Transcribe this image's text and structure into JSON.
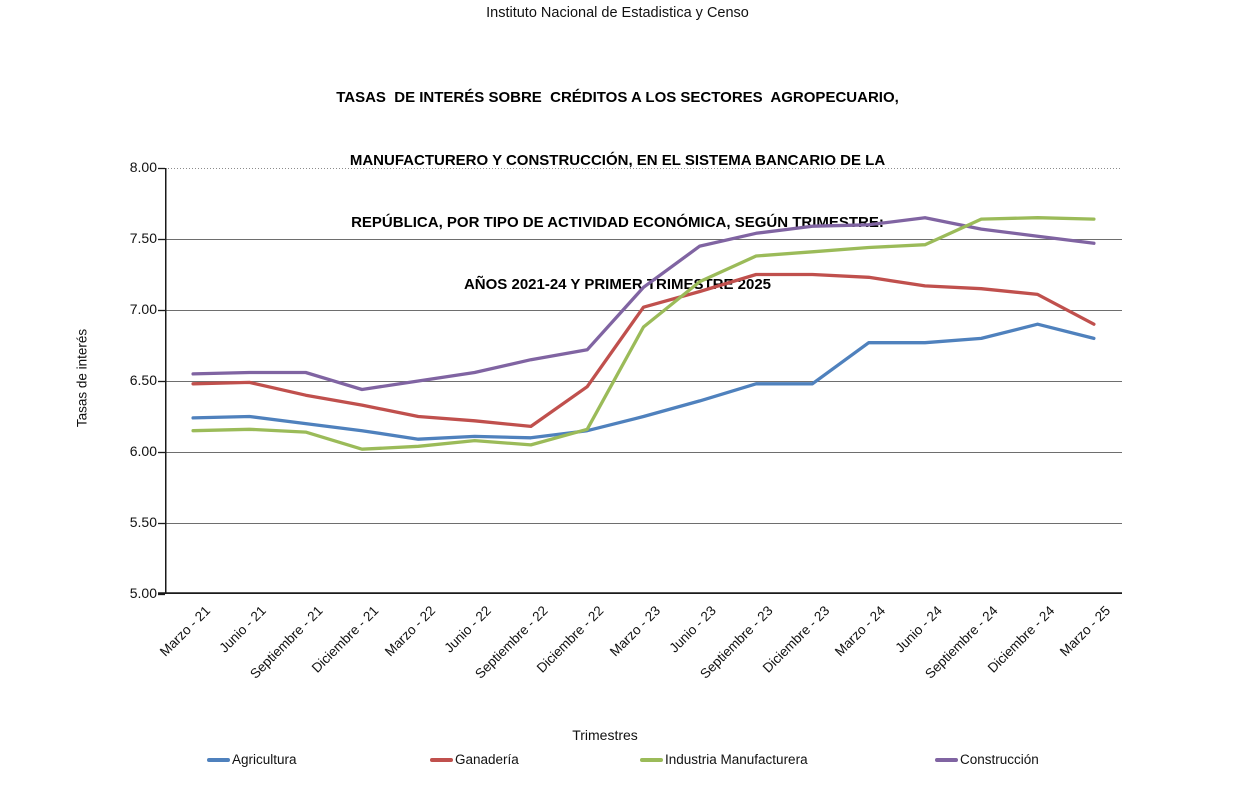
{
  "header": {
    "institution": "Instituto Nacional de Estadistica y Censo"
  },
  "title": {
    "lines": [
      "TASAS  DE INTERÉS SOBRE  CRÉDITOS A LOS SECTORES  AGROPECUARIO,",
      "MANUFACTURERO Y CONSTRUCCIÓN, EN EL SISTEMA BANCARIO DE LA",
      "REPÚBLICA, POR TIPO DE ACTIVIDAD ECONÓMICA, SEGÚN TRIMESTRE:",
      "AÑOS 2021-24 Y PRIMER TRIMESTRE 2025"
    ]
  },
  "chart_data": {
    "type": "line",
    "title": "TASAS DE INTERÉS SOBRE CRÉDITOS A LOS SECTORES AGROPECUARIO, MANUFACTURERO Y CONSTRUCCIÓN, EN EL SISTEMA BANCARIO DE LA REPÚBLICA, POR TIPO DE ACTIVIDAD ECONÓMICA, SEGÚN TRIMESTRE: AÑOS 2021-24 Y PRIMER TRIMESTRE 2025",
    "categories": [
      "Marzo - 21",
      "Junio - 21",
      "Septiembre - 21",
      "Diciembre - 21",
      "Marzo - 22",
      "Junio - 22",
      "Septiembre - 22",
      "Diciembre - 22",
      "Marzo - 23",
      "Junio - 23",
      "Septiembre - 23",
      "Diciembre - 23",
      "Marzo - 24",
      "Junio - 24",
      "Septiembre - 24",
      "Diciembre - 24",
      "Marzo - 25"
    ],
    "series": [
      {
        "name": "Agricultura",
        "color": "#4F81BD",
        "z": 1,
        "values": [
          6.24,
          6.25,
          6.2,
          6.15,
          6.09,
          6.11,
          6.1,
          6.15,
          6.25,
          6.36,
          6.48,
          6.48,
          6.77,
          6.77,
          6.8,
          6.9,
          6.8
        ]
      },
      {
        "name": "Ganadería",
        "color": "#C0504D",
        "z": 2,
        "values": [
          6.48,
          6.49,
          6.4,
          6.33,
          6.25,
          6.22,
          6.18,
          6.46,
          7.02,
          7.13,
          7.25,
          7.25,
          7.23,
          7.17,
          7.15,
          7.11,
          6.9
        ]
      },
      {
        "name": "Industria Manufacturera",
        "color": "#9BBB59",
        "z": 4,
        "values": [
          6.15,
          6.16,
          6.14,
          6.02,
          6.04,
          6.08,
          6.05,
          6.16,
          6.88,
          7.2,
          7.38,
          7.41,
          7.44,
          7.46,
          7.64,
          7.65,
          7.64
        ]
      },
      {
        "name": "Construcción",
        "color": "#8064A2",
        "z": 3,
        "values": [
          6.55,
          6.56,
          6.56,
          6.44,
          6.5,
          6.56,
          6.65,
          6.72,
          7.16,
          7.45,
          7.54,
          7.59,
          7.6,
          7.65,
          7.57,
          7.52,
          7.47
        ]
      }
    ],
    "xlabel": "Trimestres",
    "ylabel": "Tasas de interés",
    "ylim": [
      5.0,
      8.0
    ],
    "ytick_step": 0.5,
    "ytick_labels": [
      "8.00",
      "7.50",
      "7.00",
      "6.50",
      "6.00",
      "5.50",
      "5.00"
    ],
    "grid": true,
    "legend_position": "bottom"
  }
}
